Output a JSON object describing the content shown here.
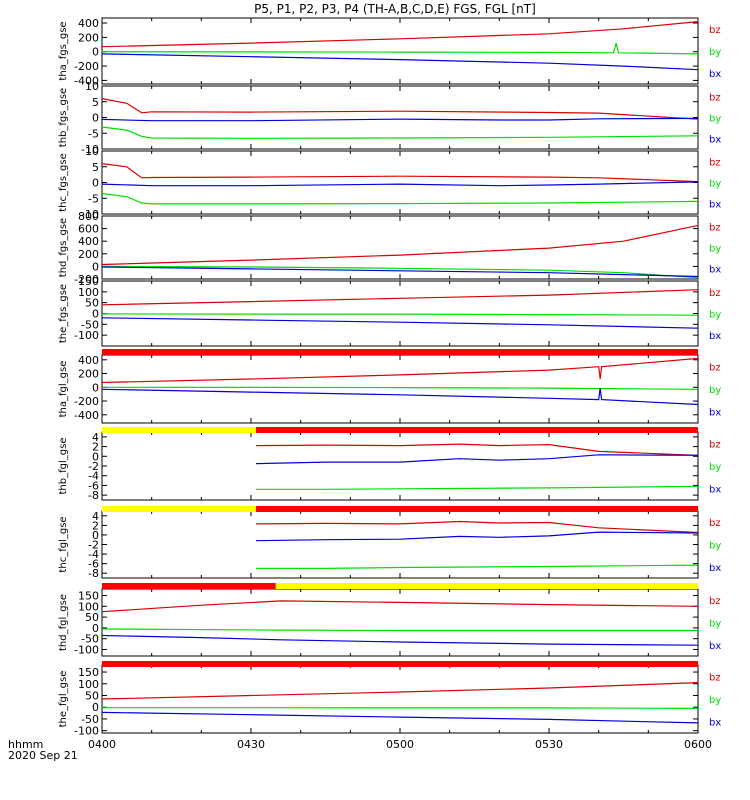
{
  "title": "P5, P1, P2, P3, P4 (TH-A,B,C,D,E) FGS, FGL [nT]",
  "x_axis": {
    "tick_labels": [
      "0400",
      "0430",
      "0500",
      "0530",
      "0600"
    ],
    "label_line1": "hhmm",
    "label_line2": "2020 Sep 21"
  },
  "colors": {
    "bz": "#dd0000",
    "by": "#00dd00",
    "bx": "#0000dd",
    "flag_red": "#ff0000",
    "flag_yellow": "#ffff00"
  },
  "chart_data": {
    "type": "line",
    "x_unit": "minutes after 04:00 UT",
    "xlim": [
      0,
      120
    ],
    "panels": [
      {
        "ylabel": "tha_fgs_gse",
        "ylim": [
          -450,
          470
        ],
        "yticks": [
          -400,
          -200,
          0,
          200,
          400
        ],
        "series": [
          {
            "name": "bz",
            "x": [
              0,
              30,
              60,
              90,
              105,
              120
            ],
            "values": [
              70,
              120,
              180,
              250,
              320,
              420
            ]
          },
          {
            "name": "by",
            "x": [
              0,
              30,
              60,
              90,
              103,
              103.5,
              104,
              120
            ],
            "values": [
              0,
              -2,
              -5,
              -10,
              -15,
              120,
              -15,
              -30
            ]
          },
          {
            "name": "bx",
            "x": [
              0,
              30,
              60,
              90,
              105,
              120
            ],
            "values": [
              -30,
              -70,
              -110,
              -160,
              -200,
              -250
            ]
          }
        ]
      },
      {
        "ylabel": "thb_fgs_gse",
        "ylim": [
          -10,
          10
        ],
        "yticks": [
          -10,
          -5,
          0,
          5,
          10
        ],
        "series": [
          {
            "name": "bz",
            "x": [
              0,
              5,
              8,
              10,
              30,
              60,
              90,
              100,
              120
            ],
            "values": [
              6,
              4.5,
              1.5,
              1.8,
              1.7,
              2.0,
              1.6,
              1.4,
              -0.5
            ]
          },
          {
            "name": "by",
            "x": [
              0,
              5,
              8,
              10,
              30,
              60,
              90,
              120
            ],
            "values": [
              -3,
              -4,
              -6,
              -6.5,
              -6.6,
              -6.5,
              -6.3,
              -5.8
            ]
          },
          {
            "name": "bx",
            "x": [
              0,
              10,
              30,
              60,
              80,
              90,
              100,
              120
            ],
            "values": [
              -0.6,
              -1,
              -1.0,
              -0.5,
              -0.8,
              -0.8,
              -0.4,
              -0.3
            ]
          }
        ]
      },
      {
        "ylabel": "thc_fgs_gse",
        "ylim": [
          -10,
          10
        ],
        "yticks": [
          -10,
          -5,
          0,
          5,
          10
        ],
        "series": [
          {
            "name": "bz",
            "x": [
              0,
              5,
              8,
              10,
              30,
              60,
              90,
              100,
              120
            ],
            "values": [
              6,
              5,
              1.5,
              1.6,
              1.7,
              2.0,
              1.7,
              1.5,
              0.3
            ]
          },
          {
            "name": "by",
            "x": [
              0,
              5,
              8,
              10,
              30,
              60,
              90,
              120
            ],
            "values": [
              -3.5,
              -4.5,
              -6.5,
              -6.8,
              -6.8,
              -6.7,
              -6.5,
              -6.0
            ]
          },
          {
            "name": "bx",
            "x": [
              0,
              10,
              30,
              60,
              80,
              90,
              100,
              120
            ],
            "values": [
              -0.5,
              -1.0,
              -1.0,
              -0.5,
              -1.0,
              -0.8,
              -0.5,
              0.2
            ]
          }
        ]
      },
      {
        "ylabel": "thd_fgs_gse",
        "ylim": [
          -200,
          800
        ],
        "yticks": [
          -200,
          0,
          200,
          400,
          600,
          800
        ],
        "series": [
          {
            "name": "bz",
            "x": [
              0,
              30,
              60,
              90,
              105,
              120
            ],
            "values": [
              30,
              100,
              180,
              290,
              400,
              650
            ]
          },
          {
            "name": "by",
            "x": [
              0,
              30,
              60,
              90,
              105,
              120
            ],
            "values": [
              0,
              -10,
              -30,
              -60,
              -100,
              -180
            ]
          },
          {
            "name": "bx",
            "x": [
              0,
              30,
              60,
              90,
              105,
              120
            ],
            "values": [
              -10,
              -40,
              -70,
              -100,
              -130,
              -160
            ]
          }
        ]
      },
      {
        "ylabel": "the_fgs_gse",
        "ylim": [
          -150,
          150
        ],
        "yticks": [
          -100,
          -50,
          0,
          50,
          100,
          150
        ],
        "series": [
          {
            "name": "bz",
            "x": [
              0,
              30,
              60,
              90,
              120
            ],
            "values": [
              40,
              55,
              70,
              85,
              110
            ]
          },
          {
            "name": "by",
            "x": [
              0,
              30,
              60,
              90,
              120
            ],
            "values": [
              -2,
              -3,
              -3,
              -5,
              -8
            ]
          },
          {
            "name": "bx",
            "x": [
              0,
              30,
              60,
              90,
              120
            ],
            "values": [
              -20,
              -30,
              -40,
              -52,
              -68
            ]
          }
        ]
      },
      {
        "ylabel": "tha_fgl_gse",
        "ylim": [
          -520,
          470
        ],
        "yticks": [
          -400,
          -200,
          0,
          200,
          400
        ],
        "series": [
          {
            "name": "bz",
            "x": [
              0,
              30,
              60,
              90,
              100,
              100.3,
              100.6,
              120
            ],
            "values": [
              70,
              120,
              180,
              250,
              300,
              120,
              300,
              420
            ]
          },
          {
            "name": "by",
            "x": [
              0,
              30,
              60,
              90,
              120
            ],
            "values": [
              0,
              -2,
              -5,
              -12,
              -30
            ]
          },
          {
            "name": "bx",
            "x": [
              0,
              30,
              60,
              90,
              100,
              100.3,
              100.6,
              120
            ],
            "values": [
              -30,
              -70,
              -110,
              -160,
              -180,
              -10,
              -180,
              -250
            ]
          }
        ]
      },
      {
        "ylabel": "thb_fgl_gse",
        "ylim": [
          -9,
          5
        ],
        "yticks": [
          -8,
          -6,
          -4,
          -2,
          0,
          2,
          4
        ],
        "series": [
          {
            "name": "bz",
            "x": [
              31,
              45,
              60,
              72,
              80,
              90,
              100,
              120
            ],
            "values": [
              2.2,
              2.3,
              2.2,
              2.5,
              2.2,
              2.4,
              1.0,
              0.2
            ]
          },
          {
            "name": "by",
            "x": [
              31,
              45,
              60,
              90,
              120
            ],
            "values": [
              -6.8,
              -6.8,
              -6.7,
              -6.5,
              -6.2
            ]
          },
          {
            "name": "bx",
            "x": [
              31,
              45,
              60,
              72,
              80,
              90,
              100,
              120
            ],
            "values": [
              -1.5,
              -1.2,
              -1.2,
              -0.5,
              -0.8,
              -0.5,
              0.3,
              0.2
            ]
          }
        ]
      },
      {
        "ylabel": "thc_fgl_gse",
        "ylim": [
          -9,
          5
        ],
        "yticks": [
          -8,
          -6,
          -4,
          -2,
          0,
          2,
          4
        ],
        "series": [
          {
            "name": "bz",
            "x": [
              31,
              45,
              60,
              72,
              80,
              90,
              100,
              120
            ],
            "values": [
              2.3,
              2.4,
              2.3,
              2.8,
              2.5,
              2.6,
              1.5,
              0.5
            ]
          },
          {
            "name": "by",
            "x": [
              31,
              45,
              60,
              90,
              120
            ],
            "values": [
              -7.0,
              -7.0,
              -6.8,
              -6.6,
              -6.3
            ]
          },
          {
            "name": "bx",
            "x": [
              31,
              45,
              60,
              72,
              80,
              90,
              100,
              120
            ],
            "values": [
              -1.2,
              -1.0,
              -0.9,
              -0.3,
              -0.5,
              -0.2,
              0.6,
              0.4
            ]
          }
        ]
      },
      {
        "ylabel": "thd_fgl_gse",
        "ylim": [
          -130,
          180
        ],
        "yticks": [
          -100,
          -50,
          0,
          50,
          100,
          150
        ],
        "series": [
          {
            "name": "bz",
            "x": [
              0,
              20,
              36,
              60,
              90,
              120
            ],
            "values": [
              75,
              105,
              125,
              118,
              108,
              100
            ]
          },
          {
            "name": "by",
            "x": [
              0,
              36,
              60,
              90,
              120
            ],
            "values": [
              -5,
              -10,
              -12,
              -12,
              -12
            ]
          },
          {
            "name": "bx",
            "x": [
              0,
              20,
              36,
              60,
              90,
              120
            ],
            "values": [
              -35,
              -45,
              -55,
              -65,
              -75,
              -80
            ]
          }
        ]
      },
      {
        "ylabel": "the_fgl_gse",
        "ylim": [
          -110,
          180
        ],
        "yticks": [
          -100,
          -50,
          0,
          50,
          100,
          150
        ],
        "series": [
          {
            "name": "bz",
            "x": [
              0,
              30,
              60,
              90,
              120
            ],
            "values": [
              35,
              50,
              65,
              82,
              105
            ]
          },
          {
            "name": "by",
            "x": [
              0,
              30,
              60,
              90,
              120
            ],
            "values": [
              -2,
              -2,
              -3,
              -3,
              -5
            ]
          },
          {
            "name": "bx",
            "x": [
              0,
              30,
              60,
              90,
              120
            ],
            "values": [
              -22,
              -32,
              -42,
              -52,
              -67
            ]
          }
        ]
      }
    ],
    "flag_bars": [
      {
        "segments": [
          {
            "from": 0,
            "to": 120,
            "color": "red"
          }
        ]
      },
      {
        "segments": [
          {
            "from": 0,
            "to": 31,
            "color": "yellow"
          },
          {
            "from": 31,
            "to": 120,
            "color": "red"
          }
        ]
      },
      {
        "segments": [
          {
            "from": 0,
            "to": 31,
            "color": "yellow"
          },
          {
            "from": 31,
            "to": 120,
            "color": "red"
          }
        ]
      },
      {
        "segments": [
          {
            "from": 0,
            "to": 35,
            "color": "red"
          },
          {
            "from": 35,
            "to": 120,
            "color": "yellow"
          }
        ]
      },
      {
        "segments": [
          {
            "from": 0,
            "to": 120,
            "color": "red"
          }
        ]
      }
    ]
  }
}
